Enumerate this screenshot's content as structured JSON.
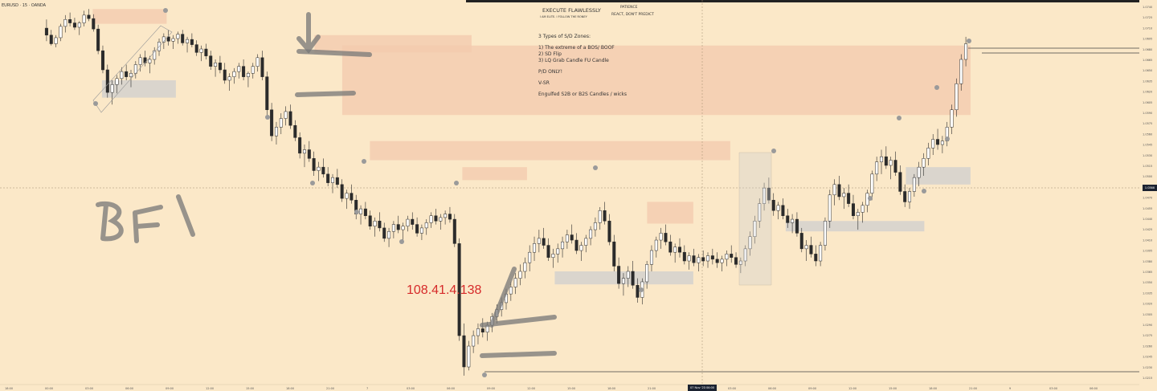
{
  "chart_data": {
    "type": "candlestick",
    "symbol_label": "EURUSD · 15 · OANDA",
    "header": {
      "title": "EXECUTE FLAWLESSLY",
      "subtitle": "I AM ELITE. I FOLLOW THE RONEY",
      "right_line1": "PATIENCE",
      "right_line2": "REACT, DON'T PREDICT"
    },
    "notes": {
      "heading": "3 Types of S/D Zones:",
      "items": [
        "1) The extreme of a BOS/ BOOF",
        "2) SD Flip",
        "3) LQ Grab Candle FU Candle"
      ],
      "line1": "P/D ONLY!",
      "line2": "V-SR",
      "line3": "Engulfed S2B or B2S Candles / wicks"
    },
    "annotation_handwritten": "BFI",
    "ip_watermark": "108.41.4.138",
    "crosshair_price_label": "1.0366",
    "crosshair_time_label": "07 Nov '23  06:00",
    "x_tick_labels": [
      "18:00",
      "00:00",
      "03:00",
      "06:00",
      "09:00",
      "12:00",
      "15:00",
      "18:00",
      "21:00",
      "7",
      "03:00",
      "06:00",
      "09:00",
      "12:00",
      "15:00",
      "18:00",
      "21:00",
      "8",
      "03:00",
      "06:00",
      "09:00",
      "12:00",
      "15:00",
      "18:00",
      "21:00",
      "9",
      "03:00",
      "06:00"
    ],
    "y_tick_labels": [
      "1.0740",
      "1.0725",
      "1.0710",
      "1.0695",
      "1.0680",
      "1.0665",
      "1.0650",
      "1.0635",
      "1.0620",
      "1.0605",
      "1.0590",
      "1.0575",
      "1.0560",
      "1.0545",
      "1.0530",
      "1.0515",
      "1.0500",
      "1.0485",
      "1.0470",
      "1.0455",
      "1.0440",
      "1.0425",
      "1.0410",
      "1.0395",
      "1.0380",
      "1.0365",
      "1.0350",
      "1.0335",
      "1.0320",
      "1.0305",
      "1.0290",
      "1.0275",
      "1.0260",
      "1.0245",
      "1.0230",
      "1.0215"
    ],
    "colors": {
      "background": "#fbe8c8",
      "bull": "#ffffff",
      "bear": "#2b2b2b",
      "supply_zone": "#f3c9ad",
      "demand_zone": "#cfcfcf",
      "text": "#333333",
      "watermark": "#d62a2a",
      "marker": "#9a9a9a"
    },
    "candles": [
      [
        1.072,
        1.073,
        1.0705,
        1.0712
      ],
      [
        1.0712,
        1.0718,
        1.07,
        1.0702
      ],
      [
        1.0702,
        1.0712,
        1.0698,
        1.0709
      ],
      [
        1.0709,
        1.0725,
        1.0705,
        1.0722
      ],
      [
        1.0722,
        1.0735,
        1.0715,
        1.073
      ],
      [
        1.073,
        1.0738,
        1.0722,
        1.0726
      ],
      [
        1.0726,
        1.0732,
        1.0718,
        1.0721
      ],
      [
        1.0721,
        1.0728,
        1.0712,
        1.0726
      ],
      [
        1.0726,
        1.074,
        1.0722,
        1.0735
      ],
      [
        1.0735,
        1.0742,
        1.0728,
        1.0731
      ],
      [
        1.0731,
        1.0736,
        1.0716,
        1.0719
      ],
      [
        1.0719,
        1.0724,
        1.069,
        1.0694
      ],
      [
        1.0694,
        1.07,
        1.0668,
        1.0672
      ],
      [
        1.0672,
        1.0678,
        1.064,
        1.0646
      ],
      [
        1.0646,
        1.066,
        1.0632,
        1.0655
      ],
      [
        1.0655,
        1.0666,
        1.0645,
        1.0662
      ],
      [
        1.0662,
        1.0675,
        1.0655,
        1.067
      ],
      [
        1.067,
        1.0678,
        1.066,
        1.0664
      ],
      [
        1.0664,
        1.0672,
        1.0652,
        1.0668
      ],
      [
        1.0668,
        1.0682,
        1.0662,
        1.0678
      ],
      [
        1.0678,
        1.069,
        1.067,
        1.0686
      ],
      [
        1.0686,
        1.0694,
        1.0676,
        1.068
      ],
      [
        1.068,
        1.0688,
        1.0668,
        1.0684
      ],
      [
        1.0684,
        1.0698,
        1.0678,
        1.0694
      ],
      [
        1.0694,
        1.0708,
        1.0688,
        1.0704
      ],
      [
        1.0704,
        1.0714,
        1.0696,
        1.071
      ],
      [
        1.071,
        1.0718,
        1.07,
        1.0705
      ],
      [
        1.0705,
        1.0712,
        1.0696,
        1.0708
      ],
      [
        1.0708,
        1.0716,
        1.0702,
        1.0713
      ],
      [
        1.0713,
        1.0718,
        1.07,
        1.0703
      ],
      [
        1.0703,
        1.071,
        1.0692,
        1.0707
      ],
      [
        1.0707,
        1.0714,
        1.0698,
        1.0701
      ],
      [
        1.0701,
        1.0706,
        1.0688,
        1.0692
      ],
      [
        1.0692,
        1.07,
        1.0682,
        1.0696
      ],
      [
        1.0696,
        1.0702,
        1.0684,
        1.0688
      ],
      [
        1.0688,
        1.0694,
        1.0672,
        1.0676
      ],
      [
        1.0676,
        1.0684,
        1.0664,
        1.068
      ],
      [
        1.068,
        1.0688,
        1.0668,
        1.0672
      ],
      [
        1.0672,
        1.068,
        1.0656,
        1.066
      ],
      [
        1.066,
        1.0668,
        1.0648,
        1.0664
      ],
      [
        1.0664,
        1.0674,
        1.0656,
        1.067
      ],
      [
        1.067,
        1.068,
        1.0662,
        1.0676
      ],
      [
        1.0676,
        1.0684,
        1.066,
        1.0664
      ],
      [
        1.0664,
        1.067,
        1.0652,
        1.0668
      ],
      [
        1.0668,
        1.068,
        1.0662,
        1.0676
      ],
      [
        1.0676,
        1.069,
        1.067,
        1.0686
      ],
      [
        1.0686,
        1.0694,
        1.066,
        1.0664
      ],
      [
        1.0664,
        1.067,
        1.062,
        1.0626
      ],
      [
        1.0626,
        1.0634,
        1.059,
        1.0596
      ],
      [
        1.0596,
        1.0612,
        1.0586,
        1.0606
      ],
      [
        1.0606,
        1.0622,
        1.0598,
        1.0616
      ],
      [
        1.0616,
        1.063,
        1.0608,
        1.0624
      ],
      [
        1.0624,
        1.0632,
        1.0604,
        1.0608
      ],
      [
        1.0608,
        1.0614,
        1.059,
        1.0594
      ],
      [
        1.0594,
        1.06,
        1.057,
        1.0576
      ],
      [
        1.0576,
        1.0586,
        1.056,
        1.058
      ],
      [
        1.058,
        1.059,
        1.0566,
        1.057
      ],
      [
        1.057,
        1.0578,
        1.055,
        1.0556
      ],
      [
        1.0556,
        1.0566,
        1.0544,
        1.056
      ],
      [
        1.056,
        1.057,
        1.0548,
        1.0552
      ],
      [
        1.0552,
        1.056,
        1.0538,
        1.0542
      ],
      [
        1.0542,
        1.0552,
        1.053,
        1.0548
      ],
      [
        1.0548,
        1.0558,
        1.0536,
        1.054
      ],
      [
        1.054,
        1.0546,
        1.052,
        1.0524
      ],
      [
        1.0524,
        1.0534,
        1.0512,
        1.053
      ],
      [
        1.053,
        1.054,
        1.0518,
        1.0522
      ],
      [
        1.0522,
        1.0528,
        1.05,
        1.0506
      ],
      [
        1.0506,
        1.0516,
        1.0494,
        1.0512
      ],
      [
        1.0512,
        1.052,
        1.05,
        1.0504
      ],
      [
        1.0504,
        1.051,
        1.0488,
        1.0492
      ],
      [
        1.0492,
        1.0502,
        1.048,
        1.0498
      ],
      [
        1.0498,
        1.0508,
        1.0486,
        1.049
      ],
      [
        1.049,
        1.0496,
        1.0474,
        1.0478
      ],
      [
        1.0478,
        1.049,
        1.0468,
        1.0486
      ],
      [
        1.0486,
        1.0498,
        1.0478,
        1.0494
      ],
      [
        1.0494,
        1.0504,
        1.0484,
        1.0488
      ],
      [
        1.0488,
        1.0496,
        1.0476,
        1.0492
      ],
      [
        1.0492,
        1.0504,
        1.0486,
        1.05
      ],
      [
        1.05,
        1.0508,
        1.0488,
        1.0494
      ],
      [
        1.0494,
        1.0502,
        1.048,
        1.0484
      ],
      [
        1.0484,
        1.0494,
        1.0476,
        1.049
      ],
      [
        1.049,
        1.05,
        1.0482,
        1.0496
      ],
      [
        1.0496,
        1.0508,
        1.049,
        1.0504
      ],
      [
        1.0504,
        1.0512,
        1.0494,
        1.0498
      ],
      [
        1.0498,
        1.0506,
        1.0488,
        1.0502
      ],
      [
        1.0502,
        1.051,
        1.0494,
        1.0506
      ],
      [
        1.0506,
        1.0514,
        1.0496,
        1.05
      ],
      [
        1.05,
        1.0506,
        1.0468,
        1.0472
      ],
      [
        1.0472,
        1.0478,
        1.036,
        1.0366
      ],
      [
        1.0366,
        1.038,
        1.032,
        1.033
      ],
      [
        1.033,
        1.036,
        1.0326,
        1.0354
      ],
      [
        1.0354,
        1.0372,
        1.0346,
        1.0366
      ],
      [
        1.0366,
        1.038,
        1.0356,
        1.0374
      ],
      [
        1.0374,
        1.0386,
        1.0364,
        1.037
      ],
      [
        1.037,
        1.0382,
        1.036,
        1.0378
      ],
      [
        1.0378,
        1.0392,
        1.037,
        1.0388
      ],
      [
        1.0388,
        1.0402,
        1.038,
        1.0396
      ],
      [
        1.0396,
        1.041,
        1.0388,
        1.0404
      ],
      [
        1.0404,
        1.042,
        1.0396,
        1.0414
      ],
      [
        1.0414,
        1.0428,
        1.0406,
        1.0422
      ],
      [
        1.0422,
        1.0438,
        1.0414,
        1.0432
      ],
      [
        1.0432,
        1.0448,
        1.0424,
        1.044
      ],
      [
        1.044,
        1.0456,
        1.0432,
        1.045
      ],
      [
        1.045,
        1.047,
        1.044,
        1.0462
      ],
      [
        1.0462,
        1.048,
        1.0452,
        1.0472
      ],
      [
        1.0472,
        1.0488,
        1.0462,
        1.0478
      ],
      [
        1.0478,
        1.049,
        1.0466,
        1.047
      ],
      [
        1.047,
        1.0478,
        1.0452,
        1.0456
      ],
      [
        1.0456,
        1.0466,
        1.0444,
        1.046
      ],
      [
        1.046,
        1.0472,
        1.045,
        1.0466
      ],
      [
        1.0466,
        1.048,
        1.0456,
        1.0474
      ],
      [
        1.0474,
        1.0488,
        1.0466,
        1.0482
      ],
      [
        1.0482,
        1.0494,
        1.0472,
        1.0476
      ],
      [
        1.0476,
        1.0484,
        1.046,
        1.0464
      ],
      [
        1.0464,
        1.0474,
        1.0452,
        1.047
      ],
      [
        1.047,
        1.0482,
        1.0462,
        1.0478
      ],
      [
        1.0478,
        1.0492,
        1.047,
        1.0488
      ],
      [
        1.0488,
        1.0502,
        1.048,
        1.0496
      ],
      [
        1.0496,
        1.0514,
        1.0488,
        1.051
      ],
      [
        1.051,
        1.052,
        1.0494,
        1.0498
      ],
      [
        1.0498,
        1.0506,
        1.047,
        1.0474
      ],
      [
        1.0474,
        1.0482,
        1.044,
        1.0446
      ],
      [
        1.0446,
        1.0456,
        1.042,
        1.0426
      ],
      [
        1.0426,
        1.0438,
        1.0412,
        1.0432
      ],
      [
        1.0432,
        1.0446,
        1.0422,
        1.044
      ],
      [
        1.044,
        1.0452,
        1.042,
        1.0424
      ],
      [
        1.0424,
        1.0432,
        1.0404,
        1.041
      ],
      [
        1.041,
        1.0432,
        1.0402,
        1.0428
      ],
      [
        1.0428,
        1.0452,
        1.042,
        1.0448
      ],
      [
        1.0448,
        1.047,
        1.044,
        1.0464
      ],
      [
        1.0464,
        1.048,
        1.0456,
        1.0476
      ],
      [
        1.0476,
        1.049,
        1.0466,
        1.0484
      ],
      [
        1.0484,
        1.0494,
        1.047,
        1.0474
      ],
      [
        1.0474,
        1.0482,
        1.0458,
        1.0462
      ],
      [
        1.0462,
        1.0472,
        1.045,
        1.0468
      ],
      [
        1.0468,
        1.0478,
        1.0456,
        1.0462
      ],
      [
        1.0462,
        1.047,
        1.0448,
        1.0452
      ],
      [
        1.0452,
        1.0462,
        1.0442,
        1.0458
      ],
      [
        1.0458,
        1.0466,
        1.0446,
        1.045
      ],
      [
        1.045,
        1.046,
        1.044,
        1.0456
      ],
      [
        1.0456,
        1.0464,
        1.0446,
        1.0452
      ],
      [
        1.0452,
        1.0462,
        1.0444,
        1.0458
      ],
      [
        1.0458,
        1.0466,
        1.0448,
        1.0454
      ],
      [
        1.0454,
        1.0462,
        1.0444,
        1.045
      ],
      [
        1.045,
        1.0458,
        1.044,
        1.0454
      ],
      [
        1.0454,
        1.0464,
        1.0446,
        1.046
      ],
      [
        1.046,
        1.047,
        1.045,
        1.0456
      ],
      [
        1.0456,
        1.0462,
        1.0444,
        1.0448
      ],
      [
        1.0448,
        1.0456,
        1.0438,
        1.0452
      ],
      [
        1.0452,
        1.047,
        1.0446,
        1.0466
      ],
      [
        1.0466,
        1.0486,
        1.0458,
        1.048
      ],
      [
        1.048,
        1.0504,
        1.0472,
        1.0498
      ],
      [
        1.0498,
        1.0524,
        1.049,
        1.0518
      ],
      [
        1.0518,
        1.0542,
        1.051,
        1.0536
      ],
      [
        1.0536,
        1.0548,
        1.0518,
        1.0522
      ],
      [
        1.0522,
        1.053,
        1.0504,
        1.051
      ],
      [
        1.051,
        1.052,
        1.05,
        1.0516
      ],
      [
        1.0516,
        1.0524,
        1.05,
        1.0504
      ],
      [
        1.0504,
        1.0512,
        1.049,
        1.0496
      ],
      [
        1.0496,
        1.0506,
        1.0484,
        1.05
      ],
      [
        1.05,
        1.0508,
        1.048,
        1.0484
      ],
      [
        1.0484,
        1.049,
        1.0462,
        1.0466
      ],
      [
        1.0466,
        1.0476,
        1.0452,
        1.047
      ],
      [
        1.047,
        1.048,
        1.0456,
        1.046
      ],
      [
        1.046,
        1.047,
        1.0446,
        1.0452
      ],
      [
        1.0452,
        1.0474,
        1.0446,
        1.047
      ],
      [
        1.047,
        1.0502,
        1.0464,
        1.0498
      ],
      [
        1.0498,
        1.0534,
        1.049,
        1.0528
      ],
      [
        1.0528,
        1.0546,
        1.0516,
        1.054
      ],
      [
        1.054,
        1.055,
        1.0522,
        1.0526
      ],
      [
        1.0526,
        1.0536,
        1.0512,
        1.053
      ],
      [
        1.053,
        1.054,
        1.0514,
        1.0518
      ],
      [
        1.0518,
        1.0528,
        1.05,
        1.0504
      ],
      [
        1.0504,
        1.0512,
        1.0488,
        1.0508
      ],
      [
        1.0508,
        1.052,
        1.0496,
        1.0516
      ],
      [
        1.0516,
        1.0534,
        1.0508,
        1.053
      ],
      [
        1.053,
        1.0556,
        1.0522,
        1.0552
      ],
      [
        1.0552,
        1.0572,
        1.0544,
        1.0566
      ],
      [
        1.0566,
        1.058,
        1.0552,
        1.0572
      ],
      [
        1.0572,
        1.0584,
        1.0558,
        1.0562
      ],
      [
        1.0562,
        1.0572,
        1.0546,
        1.0568
      ],
      [
        1.0568,
        1.0578,
        1.055,
        1.0554
      ],
      [
        1.0554,
        1.0562,
        1.0528,
        1.0532
      ],
      [
        1.0532,
        1.054,
        1.0514,
        1.052
      ],
      [
        1.052,
        1.0536,
        1.0512,
        1.0532
      ],
      [
        1.0532,
        1.0552,
        1.0526,
        1.0548
      ],
      [
        1.0548,
        1.0566,
        1.0538,
        1.056
      ],
      [
        1.056,
        1.0576,
        1.055,
        1.057
      ],
      [
        1.057,
        1.0588,
        1.0562,
        1.0582
      ],
      [
        1.0582,
        1.0598,
        1.0574,
        1.0592
      ],
      [
        1.0592,
        1.0604,
        1.058,
        1.0586
      ],
      [
        1.0586,
        1.0596,
        1.0576,
        1.059
      ],
      [
        1.059,
        1.0612,
        1.0584,
        1.0606
      ],
      [
        1.0606,
        1.0632,
        1.0598,
        1.0626
      ],
      [
        1.0626,
        1.0662,
        1.0618,
        1.0656
      ],
      [
        1.0656,
        1.069,
        1.0648,
        1.0684
      ],
      [
        1.0684,
        1.071,
        1.0676,
        1.0702
      ]
    ],
    "supply_zones": [
      [
        1.0686,
        1.0705,
        1.073,
        1.066
      ],
      [
        1.0686,
        1.076,
        1.066,
        1.0612
      ],
      [
        1.059,
        1.0702,
        1.0606,
        1.059
      ],
      [
        1.054,
        1.084,
        1.0606,
        1.053
      ],
      [
        1.047,
        1.0664,
        1.0526,
        1.0496
      ],
      [
        1.047,
        1.0512,
        1.048,
        1.0454
      ]
    ],
    "demand_zones": [
      [
        1.043,
        1.05,
        1.044,
        1.0396
      ],
      [
        1.047,
        1.052,
        1.0404,
        1.036
      ],
      [
        1.054,
        1.06,
        1.0545,
        1.052
      ],
      [
        1.045,
        1.047,
        1.0444,
        1.042
      ]
    ]
  }
}
